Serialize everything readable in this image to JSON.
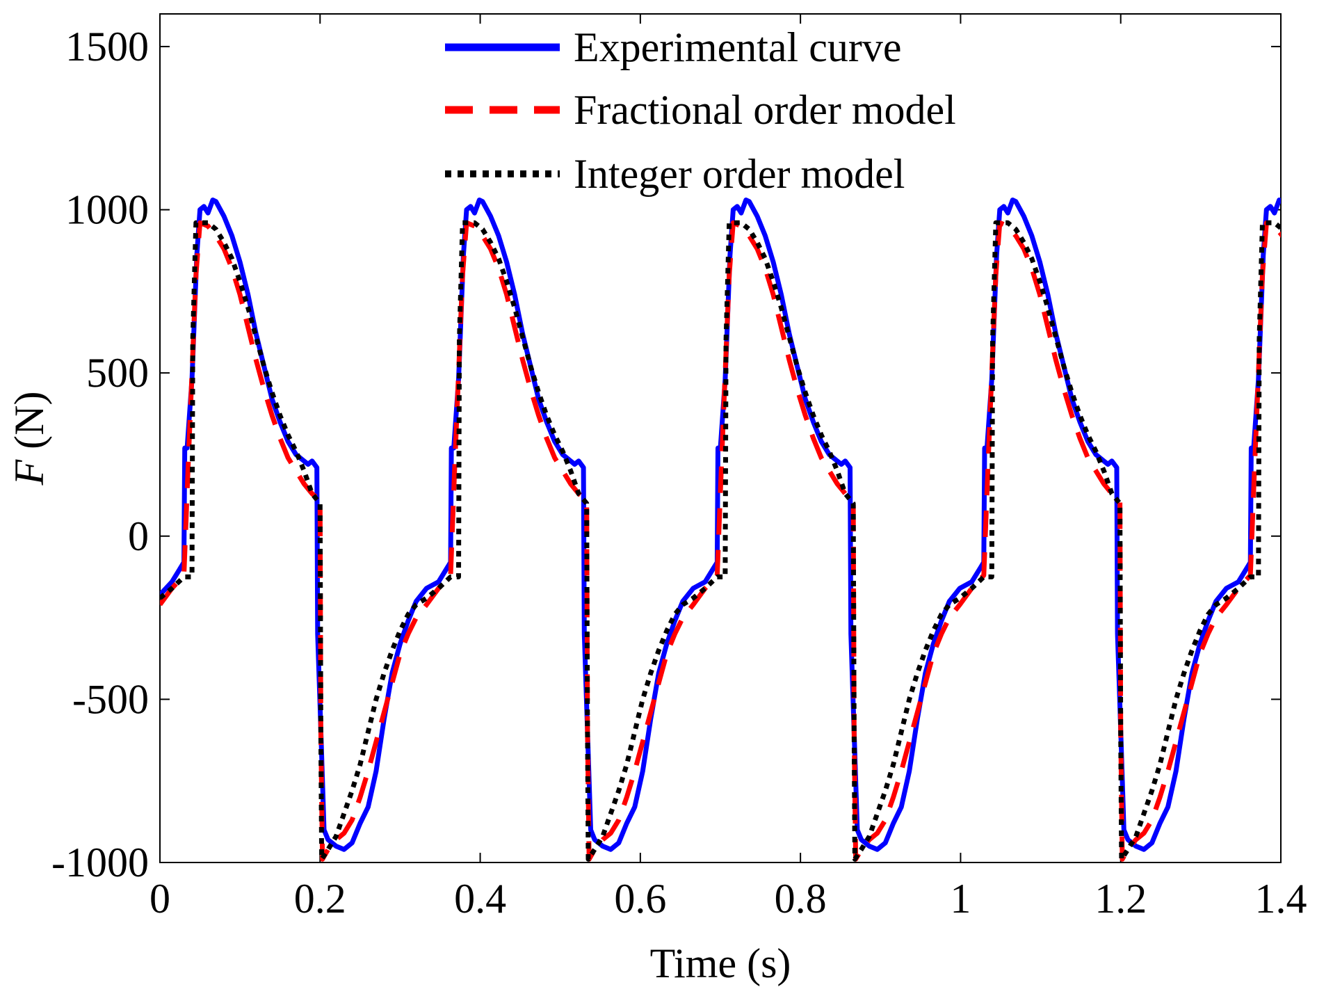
{
  "chart_data": {
    "type": "line",
    "title": "",
    "xlabel": "Time (s)",
    "ylabel_symbol": "F",
    "ylabel_unit": "(N)",
    "xlim": [
      0,
      1.4
    ],
    "ylim": [
      -1000,
      1600
    ],
    "grid": false,
    "legend_position": "top-center",
    "x_ticks": [
      0,
      0.2,
      0.4,
      0.6,
      0.8,
      1,
      1.2,
      1.4
    ],
    "x_tick_labels": [
      "0",
      "0.2",
      "0.4",
      "0.6",
      "0.8",
      "1",
      "1.2",
      "1.4"
    ],
    "y_ticks": [
      -1000,
      -500,
      0,
      500,
      1000,
      1500
    ],
    "y_tick_labels": [
      "-1000",
      "-500",
      "0",
      "500",
      "1000",
      "1500"
    ],
    "period": 0.333,
    "series": [
      {
        "name": "Experimental curve",
        "color": "#0000ff",
        "style": "solid",
        "cycle": [
          [
            0.0,
            -180
          ],
          [
            0.015,
            -140
          ],
          [
            0.025,
            -100
          ],
          [
            0.03,
            -80
          ],
          [
            0.031,
            270
          ],
          [
            0.034,
            270
          ],
          [
            0.04,
            480
          ],
          [
            0.046,
            860
          ],
          [
            0.05,
            1000
          ],
          [
            0.055,
            1010
          ],
          [
            0.06,
            990
          ],
          [
            0.066,
            1030
          ],
          [
            0.07,
            1025
          ],
          [
            0.08,
            980
          ],
          [
            0.09,
            920
          ],
          [
            0.1,
            840
          ],
          [
            0.11,
            740
          ],
          [
            0.12,
            620
          ],
          [
            0.13,
            520
          ],
          [
            0.14,
            420
          ],
          [
            0.15,
            350
          ],
          [
            0.16,
            290
          ],
          [
            0.17,
            250
          ],
          [
            0.18,
            230
          ],
          [
            0.185,
            220
          ],
          [
            0.19,
            230
          ],
          [
            0.196,
            210
          ],
          [
            0.197,
            -300
          ],
          [
            0.2,
            -520
          ],
          [
            0.205,
            -900
          ],
          [
            0.21,
            -930
          ],
          [
            0.22,
            -950
          ],
          [
            0.23,
            -960
          ],
          [
            0.24,
            -940
          ],
          [
            0.25,
            -880
          ],
          [
            0.26,
            -830
          ],
          [
            0.27,
            -720
          ],
          [
            0.28,
            -560
          ],
          [
            0.29,
            -420
          ],
          [
            0.3,
            -330
          ],
          [
            0.31,
            -260
          ],
          [
            0.32,
            -200
          ],
          [
            0.333,
            -160
          ]
        ]
      },
      {
        "name": "Fractional order model",
        "color": "#ff0000",
        "style": "dashed",
        "cycle": [
          [
            0.0,
            -210
          ],
          [
            0.015,
            -160
          ],
          [
            0.03,
            -120
          ],
          [
            0.035,
            200
          ],
          [
            0.04,
            500
          ],
          [
            0.045,
            800
          ],
          [
            0.05,
            960
          ],
          [
            0.06,
            950
          ],
          [
            0.07,
            920
          ],
          [
            0.08,
            880
          ],
          [
            0.09,
            820
          ],
          [
            0.1,
            740
          ],
          [
            0.11,
            640
          ],
          [
            0.12,
            540
          ],
          [
            0.13,
            450
          ],
          [
            0.14,
            370
          ],
          [
            0.15,
            300
          ],
          [
            0.16,
            240
          ],
          [
            0.17,
            200
          ],
          [
            0.18,
            160
          ],
          [
            0.19,
            130
          ],
          [
            0.2,
            110
          ],
          [
            0.201,
            -600
          ],
          [
            0.203,
            -990
          ],
          [
            0.21,
            -960
          ],
          [
            0.22,
            -930
          ],
          [
            0.23,
            -910
          ],
          [
            0.24,
            -870
          ],
          [
            0.25,
            -800
          ],
          [
            0.26,
            -720
          ],
          [
            0.27,
            -630
          ],
          [
            0.28,
            -540
          ],
          [
            0.29,
            -450
          ],
          [
            0.3,
            -360
          ],
          [
            0.31,
            -300
          ],
          [
            0.32,
            -250
          ],
          [
            0.333,
            -210
          ]
        ]
      },
      {
        "name": "Integer order model",
        "color": "#000000",
        "style": "dotted",
        "cycle": [
          [
            0.0,
            -190
          ],
          [
            0.015,
            -160
          ],
          [
            0.03,
            -125
          ],
          [
            0.04,
            -125
          ],
          [
            0.041,
            600
          ],
          [
            0.045,
            960
          ],
          [
            0.06,
            960
          ],
          [
            0.07,
            940
          ],
          [
            0.08,
            900
          ],
          [
            0.09,
            850
          ],
          [
            0.1,
            780
          ],
          [
            0.11,
            700
          ],
          [
            0.12,
            610
          ],
          [
            0.13,
            520
          ],
          [
            0.14,
            440
          ],
          [
            0.15,
            370
          ],
          [
            0.16,
            310
          ],
          [
            0.17,
            260
          ],
          [
            0.18,
            200
          ],
          [
            0.19,
            130
          ],
          [
            0.2,
            100
          ],
          [
            0.201,
            -600
          ],
          [
            0.202,
            -990
          ],
          [
            0.21,
            -960
          ],
          [
            0.22,
            -920
          ],
          [
            0.23,
            -850
          ],
          [
            0.24,
            -780
          ],
          [
            0.25,
            -700
          ],
          [
            0.26,
            -600
          ],
          [
            0.27,
            -500
          ],
          [
            0.28,
            -420
          ],
          [
            0.29,
            -350
          ],
          [
            0.3,
            -290
          ],
          [
            0.31,
            -240
          ],
          [
            0.32,
            -210
          ],
          [
            0.333,
            -190
          ]
        ]
      }
    ]
  }
}
